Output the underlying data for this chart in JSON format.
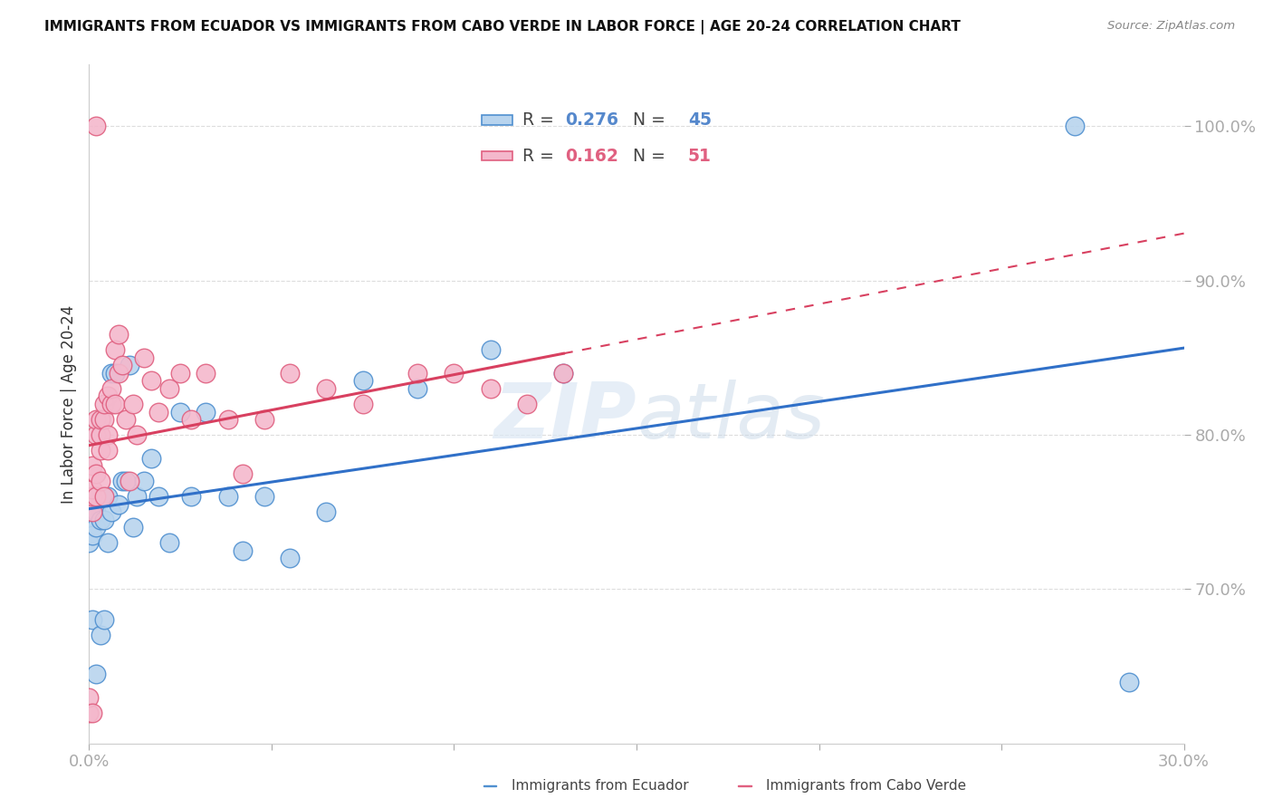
{
  "title": "IMMIGRANTS FROM ECUADOR VS IMMIGRANTS FROM CABO VERDE IN LABOR FORCE | AGE 20-24 CORRELATION CHART",
  "source": "Source: ZipAtlas.com",
  "ylabel": "In Labor Force | Age 20-24",
  "xlim": [
    0.0,
    0.3
  ],
  "ylim": [
    0.6,
    1.04
  ],
  "yticks": [
    0.7,
    0.8,
    0.9,
    1.0
  ],
  "ecuador_R": 0.276,
  "ecuador_N": 45,
  "caboverde_R": 0.162,
  "caboverde_N": 51,
  "ecuador_color": "#b8d4ee",
  "caboverde_color": "#f4b8cc",
  "ecuador_edge_color": "#5090d0",
  "caboverde_edge_color": "#e06080",
  "ecuador_line_color": "#3070c8",
  "caboverde_line_color": "#d84060",
  "legend_label_ecuador": "Immigrants from Ecuador",
  "legend_label_caboverde": "Immigrants from Cabo Verde",
  "ecuador_x": [
    0.0,
    0.0,
    0.001,
    0.001,
    0.001,
    0.001,
    0.001,
    0.002,
    0.002,
    0.002,
    0.002,
    0.003,
    0.003,
    0.003,
    0.004,
    0.004,
    0.005,
    0.005,
    0.006,
    0.006,
    0.007,
    0.008,
    0.009,
    0.01,
    0.011,
    0.012,
    0.013,
    0.015,
    0.017,
    0.019,
    0.022,
    0.025,
    0.028,
    0.032,
    0.038,
    0.042,
    0.048,
    0.055,
    0.065,
    0.075,
    0.09,
    0.11,
    0.13,
    0.27,
    0.285
  ],
  "ecuador_y": [
    0.73,
    0.745,
    0.735,
    0.75,
    0.755,
    0.76,
    0.68,
    0.74,
    0.75,
    0.76,
    0.645,
    0.745,
    0.76,
    0.67,
    0.745,
    0.68,
    0.76,
    0.73,
    0.75,
    0.84,
    0.84,
    0.755,
    0.77,
    0.77,
    0.845,
    0.74,
    0.76,
    0.77,
    0.785,
    0.76,
    0.73,
    0.815,
    0.76,
    0.815,
    0.76,
    0.725,
    0.76,
    0.72,
    0.75,
    0.835,
    0.83,
    0.855,
    0.84,
    1.0,
    0.64
  ],
  "caboverde_x": [
    0.0,
    0.0,
    0.001,
    0.001,
    0.001,
    0.001,
    0.001,
    0.002,
    0.002,
    0.002,
    0.002,
    0.002,
    0.003,
    0.003,
    0.003,
    0.003,
    0.004,
    0.004,
    0.004,
    0.005,
    0.005,
    0.005,
    0.006,
    0.006,
    0.007,
    0.007,
    0.008,
    0.008,
    0.009,
    0.01,
    0.011,
    0.012,
    0.013,
    0.015,
    0.017,
    0.019,
    0.022,
    0.025,
    0.028,
    0.032,
    0.038,
    0.042,
    0.048,
    0.055,
    0.065,
    0.075,
    0.09,
    0.1,
    0.11,
    0.12,
    0.13
  ],
  "caboverde_y": [
    0.62,
    0.63,
    0.75,
    0.76,
    0.765,
    0.78,
    0.62,
    0.76,
    0.775,
    0.8,
    0.81,
    1.0,
    0.77,
    0.79,
    0.8,
    0.81,
    0.81,
    0.82,
    0.76,
    0.8,
    0.825,
    0.79,
    0.82,
    0.83,
    0.82,
    0.855,
    0.84,
    0.865,
    0.845,
    0.81,
    0.77,
    0.82,
    0.8,
    0.85,
    0.835,
    0.815,
    0.83,
    0.84,
    0.81,
    0.84,
    0.81,
    0.775,
    0.81,
    0.84,
    0.83,
    0.82,
    0.84,
    0.84,
    0.83,
    0.82,
    0.84
  ],
  "background_color": "#ffffff",
  "grid_color": "#dddddd",
  "tick_label_color": "#5588cc"
}
